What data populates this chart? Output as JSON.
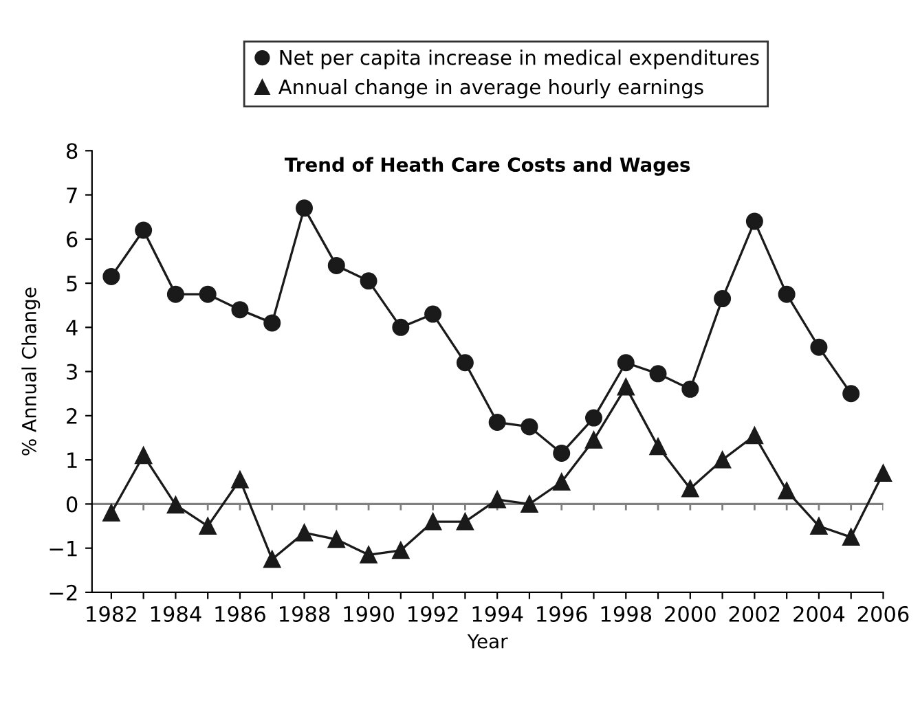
{
  "chart_data": {
    "type": "line",
    "title": "Trend of Heath Care Costs and Wages",
    "xlabel": "Year",
    "ylabel": "% Annual Change",
    "x": [
      1982,
      1983,
      1984,
      1985,
      1986,
      1987,
      1988,
      1989,
      1990,
      1991,
      1992,
      1993,
      1994,
      1995,
      1996,
      1997,
      1998,
      1999,
      2000,
      2001,
      2002,
      2003,
      2004,
      2005,
      2006
    ],
    "series": [
      {
        "name": "Net per capita increase in medical expenditures",
        "color": "#1a1a1a",
        "marker": "circle",
        "values": [
          5.15,
          6.2,
          4.75,
          4.75,
          4.4,
          4.1,
          6.7,
          5.4,
          5.05,
          4.0,
          4.3,
          3.2,
          1.85,
          1.75,
          1.15,
          1.95,
          3.2,
          2.95,
          2.6,
          4.65,
          6.4,
          4.75,
          3.55,
          2.5,
          null
        ]
      },
      {
        "name": "Annual change in average hourly earnings",
        "color": "#1a1a1a",
        "marker": "triangle",
        "values": [
          -0.2,
          1.1,
          -0.02,
          -0.5,
          0.55,
          -1.25,
          -0.65,
          -0.8,
          -1.15,
          -1.05,
          -0.4,
          -0.4,
          0.1,
          0.0,
          0.5,
          1.45,
          2.65,
          1.3,
          0.35,
          1.0,
          1.55,
          0.3,
          -0.5,
          -0.75,
          0.7
        ]
      }
    ],
    "xlim": [
      1981.4,
      2006
    ],
    "xticks": [
      1982,
      {
        "value": 1983,
        "label": null
      },
      1984,
      {
        "value": 1985,
        "label": null
      },
      1986,
      {
        "value": 1987,
        "label": null
      },
      1988,
      {
        "value": 1989,
        "label": null
      },
      1990,
      {
        "value": 1991,
        "label": null
      },
      1992,
      {
        "value": 1993,
        "label": null
      },
      1994,
      {
        "value": 1995,
        "label": null
      },
      1996,
      {
        "value": 1997,
        "label": null
      },
      1998,
      {
        "value": 1999,
        "label": null
      },
      2000,
      {
        "value": 2001,
        "label": null
      },
      2002,
      {
        "value": 2003,
        "label": null
      },
      2004,
      {
        "value": 2005,
        "label": null
      },
      2006
    ],
    "ylim": [
      -2,
      8
    ],
    "yticks": [
      {
        "value": -2,
        "label": "−2"
      },
      {
        "value": -1,
        "label": "−1"
      },
      0,
      1,
      2,
      3,
      4,
      5,
      6,
      7,
      8
    ],
    "ref_lines": [
      {
        "axis": "y",
        "value": 0,
        "color": "#808080"
      }
    ],
    "grid": false,
    "legend": "top",
    "line_style": "solid"
  }
}
